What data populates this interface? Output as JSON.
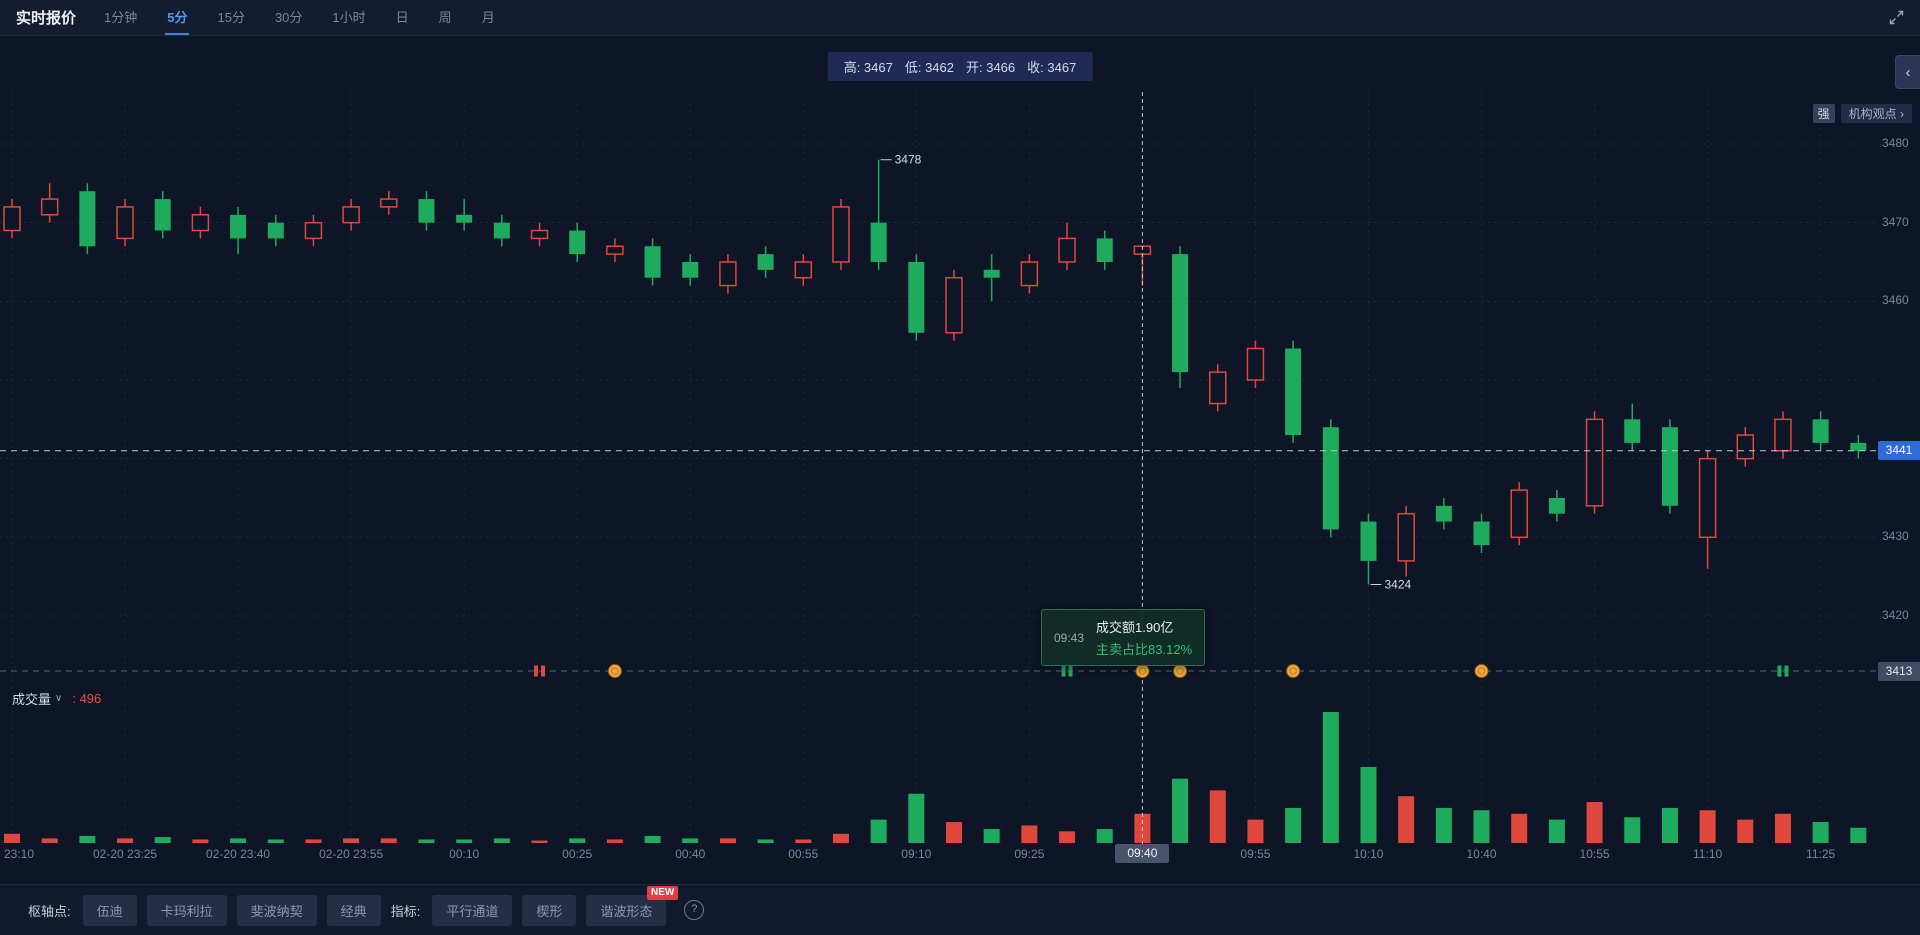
{
  "header": {
    "title": "实时报价",
    "tabs": [
      "1分钟",
      "5分",
      "15分",
      "30分",
      "1小时",
      "日",
      "周",
      "月"
    ]
  },
  "info_bar": {
    "items": [
      "高: 3467",
      "低: 3462",
      "开: 3466",
      "收: 3467"
    ]
  },
  "side_controls": {
    "collapse_icon": "‹",
    "strength_badge": "强",
    "insight_button": "机构观点 ›"
  },
  "tooltip": {
    "time": "09:43",
    "line1": "成交额1.90亿",
    "line2": "主卖占比83.12%"
  },
  "volume_pane": {
    "label": "成交量",
    "value_label": ": 496"
  },
  "toolbar": {
    "pivot_label": "枢轴点:",
    "pivot_buttons": [
      "伍迪",
      "卡玛利拉",
      "斐波纳契",
      "经典"
    ],
    "indicator_label": "指标:",
    "indicator_buttons": [
      {
        "label": "平行通道",
        "badge": ""
      },
      {
        "label": "楔形",
        "badge": ""
      },
      {
        "label": "谐波形态",
        "badge": "NEW"
      }
    ],
    "help_icon": "?"
  },
  "chart_data": {
    "type": "candlestick",
    "interval_label": "5分",
    "colors": {
      "up": "#e0483e",
      "down": "#1fab5e"
    },
    "current_price": 3441,
    "reference_price": 3413,
    "hover_candle": {
      "high": 3467,
      "low": 3462,
      "open": 3466,
      "close": 3467
    },
    "crosshair": {
      "slot": 30,
      "time_label": "09:40"
    },
    "annotations": {
      "high": {
        "slot": 23,
        "price": 3478,
        "label": "3478"
      },
      "low": {
        "slot": 36,
        "price": 3424,
        "label": "3424"
      }
    },
    "grid_prices": [
      3480,
      3470,
      3460,
      3450,
      3440,
      3430,
      3420
    ],
    "y_axis_labels": [
      {
        "label": "3480",
        "price": 3480
      },
      {
        "label": "3470",
        "price": 3470
      },
      {
        "label": "3460",
        "price": 3460
      },
      {
        "label": "3430",
        "price": 3430
      },
      {
        "label": "3420",
        "price": 3420
      }
    ],
    "x_axis": [
      {
        "label": "23:10",
        "slot": 0
      },
      {
        "label": "02-20 23:25",
        "slot": 3
      },
      {
        "label": "02-20 23:40",
        "slot": 6
      },
      {
        "label": "02-20 23:55",
        "slot": 9
      },
      {
        "label": "00:10",
        "slot": 12
      },
      {
        "label": "00:25",
        "slot": 15
      },
      {
        "label": "00:40",
        "slot": 18
      },
      {
        "label": "00:55",
        "slot": 21
      },
      {
        "label": "09:10",
        "slot": 24
      },
      {
        "label": "09:25",
        "slot": 27
      },
      {
        "label": "09:40",
        "slot": 30
      },
      {
        "label": "09:55",
        "slot": 33
      },
      {
        "label": "10:10",
        "slot": 36
      },
      {
        "label": "10:40",
        "slot": 39
      },
      {
        "label": "10:55",
        "slot": 42
      },
      {
        "label": "11:10",
        "slot": 45
      },
      {
        "label": "11:25",
        "slot": 48
      }
    ],
    "times": [
      "23:10",
      "23:15",
      "23:20",
      "23:25",
      "23:30",
      "23:35",
      "23:40",
      "23:45",
      "23:50",
      "23:55",
      "00:00",
      "00:05",
      "00:10",
      "00:15",
      "00:20",
      "00:25",
      "00:30",
      "00:35",
      "00:40",
      "00:45",
      "00:50",
      "00:55",
      "01:00",
      "09:05",
      "09:10",
      "09:15",
      "09:20",
      "09:25",
      "09:30",
      "09:35",
      "09:40",
      "09:45",
      "09:50",
      "09:55",
      "10:00",
      "10:05",
      "10:10",
      "10:15",
      "10:35",
      "10:40",
      "10:45",
      "10:50",
      "10:55",
      "11:00",
      "11:05",
      "11:10",
      "11:15",
      "11:20",
      "11:25",
      "11:30"
    ],
    "candles": [
      [
        3469,
        3473,
        3468,
        3472
      ],
      [
        3471,
        3475,
        3470,
        3473
      ],
      [
        3474,
        3475,
        3466,
        3467
      ],
      [
        3468,
        3473,
        3467,
        3472
      ],
      [
        3473,
        3474,
        3468,
        3469
      ],
      [
        3469,
        3472,
        3468,
        3471
      ],
      [
        3471,
        3472,
        3466,
        3468
      ],
      [
        3470,
        3471,
        3467,
        3468
      ],
      [
        3468,
        3471,
        3467,
        3470
      ],
      [
        3470,
        3473,
        3469,
        3472
      ],
      [
        3472,
        3474,
        3471,
        3473
      ],
      [
        3473,
        3474,
        3469,
        3470
      ],
      [
        3471,
        3473,
        3469,
        3470
      ],
      [
        3470,
        3471,
        3467,
        3468
      ],
      [
        3468,
        3470,
        3467,
        3469
      ],
      [
        3469,
        3470,
        3465,
        3466
      ],
      [
        3466,
        3468,
        3465,
        3467
      ],
      [
        3467,
        3468,
        3462,
        3463
      ],
      [
        3465,
        3466,
        3462,
        3463
      ],
      [
        3462,
        3466,
        3461,
        3465
      ],
      [
        3466,
        3467,
        3463,
        3464
      ],
      [
        3463,
        3466,
        3462,
        3465
      ],
      [
        3465,
        3473,
        3464,
        3472
      ],
      [
        3470,
        3478,
        3464,
        3465
      ],
      [
        3465,
        3466,
        3455,
        3456
      ],
      [
        3456,
        3464,
        3455,
        3463
      ],
      [
        3464,
        3466,
        3460,
        3463
      ],
      [
        3462,
        3466,
        3461,
        3465
      ],
      [
        3465,
        3470,
        3464,
        3468
      ],
      [
        3468,
        3469,
        3464,
        3465
      ],
      [
        3466,
        3467,
        3462,
        3467
      ],
      [
        3466,
        3467,
        3449,
        3451
      ],
      [
        3447,
        3452,
        3446,
        3451
      ],
      [
        3450,
        3455,
        3449,
        3454
      ],
      [
        3454,
        3455,
        3442,
        3443
      ],
      [
        3444,
        3445,
        3430,
        3431
      ],
      [
        3432,
        3433,
        3424,
        3427
      ],
      [
        3427,
        3434,
        3425,
        3433
      ],
      [
        3434,
        3435,
        3431,
        3432
      ],
      [
        3432,
        3433,
        3428,
        3429
      ],
      [
        3430,
        3437,
        3429,
        3436
      ],
      [
        3435,
        3436,
        3432,
        3433
      ],
      [
        3434,
        3446,
        3433,
        3445
      ],
      [
        3445,
        3447,
        3441,
        3442
      ],
      [
        3444,
        3445,
        3433,
        3434
      ],
      [
        3430,
        3441,
        3426,
        3440
      ],
      [
        3440,
        3444,
        3439,
        3443
      ],
      [
        3441,
        3446,
        3440,
        3445
      ],
      [
        3445,
        3446,
        3441,
        3442
      ],
      [
        3442,
        3443,
        3440,
        3441
      ]
    ],
    "volumes": [
      300,
      150,
      230,
      150,
      190,
      115,
      150,
      115,
      115,
      150,
      150,
      115,
      115,
      150,
      80,
      150,
      115,
      230,
      150,
      150,
      115,
      115,
      300,
      760,
      1600,
      680,
      456,
      570,
      380,
      456,
      950,
      2090,
      1710,
      760,
      1140,
      4256,
      2470,
      1520,
      1140,
      1064,
      950,
      760,
      1330,
      836,
      1140,
      1064,
      760,
      950,
      684,
      496
    ],
    "markers": [
      {
        "kind": "ticks",
        "color": "red",
        "slot": 14
      },
      {
        "kind": "coin",
        "slot": 16
      },
      {
        "kind": "ticks",
        "color": "green",
        "slot": 28
      },
      {
        "kind": "coin",
        "slot": 30
      },
      {
        "kind": "coin",
        "slot": 31
      },
      {
        "kind": "coin",
        "slot": 34
      },
      {
        "kind": "coin",
        "slot": 39
      },
      {
        "kind": "ticks",
        "color": "green",
        "slot": 47
      }
    ]
  }
}
